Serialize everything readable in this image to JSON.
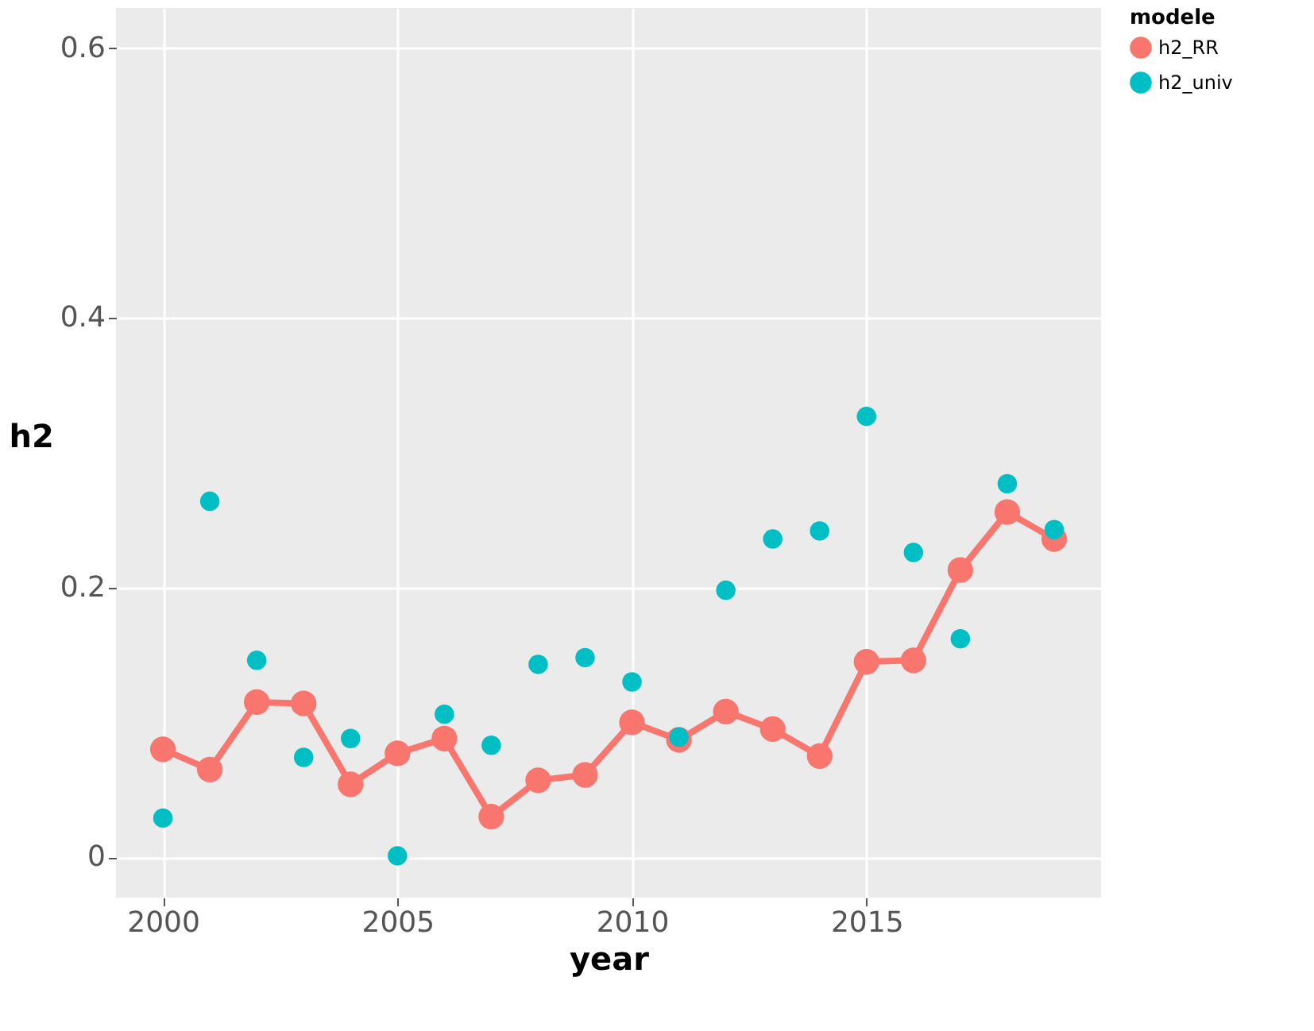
{
  "chart_data": {
    "type": "line",
    "xlabel": "year",
    "ylabel": "h2",
    "legend_title": "modele",
    "legend": "right",
    "grid": true,
    "x": [
      2000,
      2001,
      2002,
      2003,
      2004,
      2005,
      2006,
      2007,
      2008,
      2009,
      2010,
      2011,
      2012,
      2013,
      2014,
      2015,
      2016,
      2017,
      2018,
      2019
    ],
    "xlim": [
      1999,
      2020
    ],
    "xticks": [
      2000,
      2005,
      2010,
      2015
    ],
    "ylim": [
      -0.03,
      0.63
    ],
    "yticks": [
      {
        "value": 0,
        "label": "0"
      },
      {
        "value": 0.2,
        "label": "0.2"
      },
      {
        "value": 0.4,
        "label": "0.4"
      },
      {
        "value": 0.6,
        "label": "0.6"
      }
    ],
    "series": [
      {
        "name": "h2_RR",
        "type": "line",
        "marker": "circle",
        "color": "#f8766d",
        "values": [
          0.08,
          0.065,
          0.115,
          0.114,
          0.054,
          0.077,
          0.088,
          0.03,
          0.057,
          0.061,
          0.1,
          0.087,
          0.108,
          0.095,
          0.075,
          0.145,
          0.146,
          0.213,
          0.256,
          0.236
        ]
      },
      {
        "name": "h2_univ",
        "type": "scatter",
        "marker": "circle",
        "color": "#00bfc4",
        "values": [
          0.029,
          0.264,
          0.146,
          0.074,
          0.088,
          0.001,
          0.106,
          0.083,
          0.143,
          0.148,
          0.13,
          0.089,
          0.198,
          0.236,
          0.242,
          0.327,
          0.226,
          0.162,
          0.277,
          0.243
        ]
      }
    ]
  }
}
